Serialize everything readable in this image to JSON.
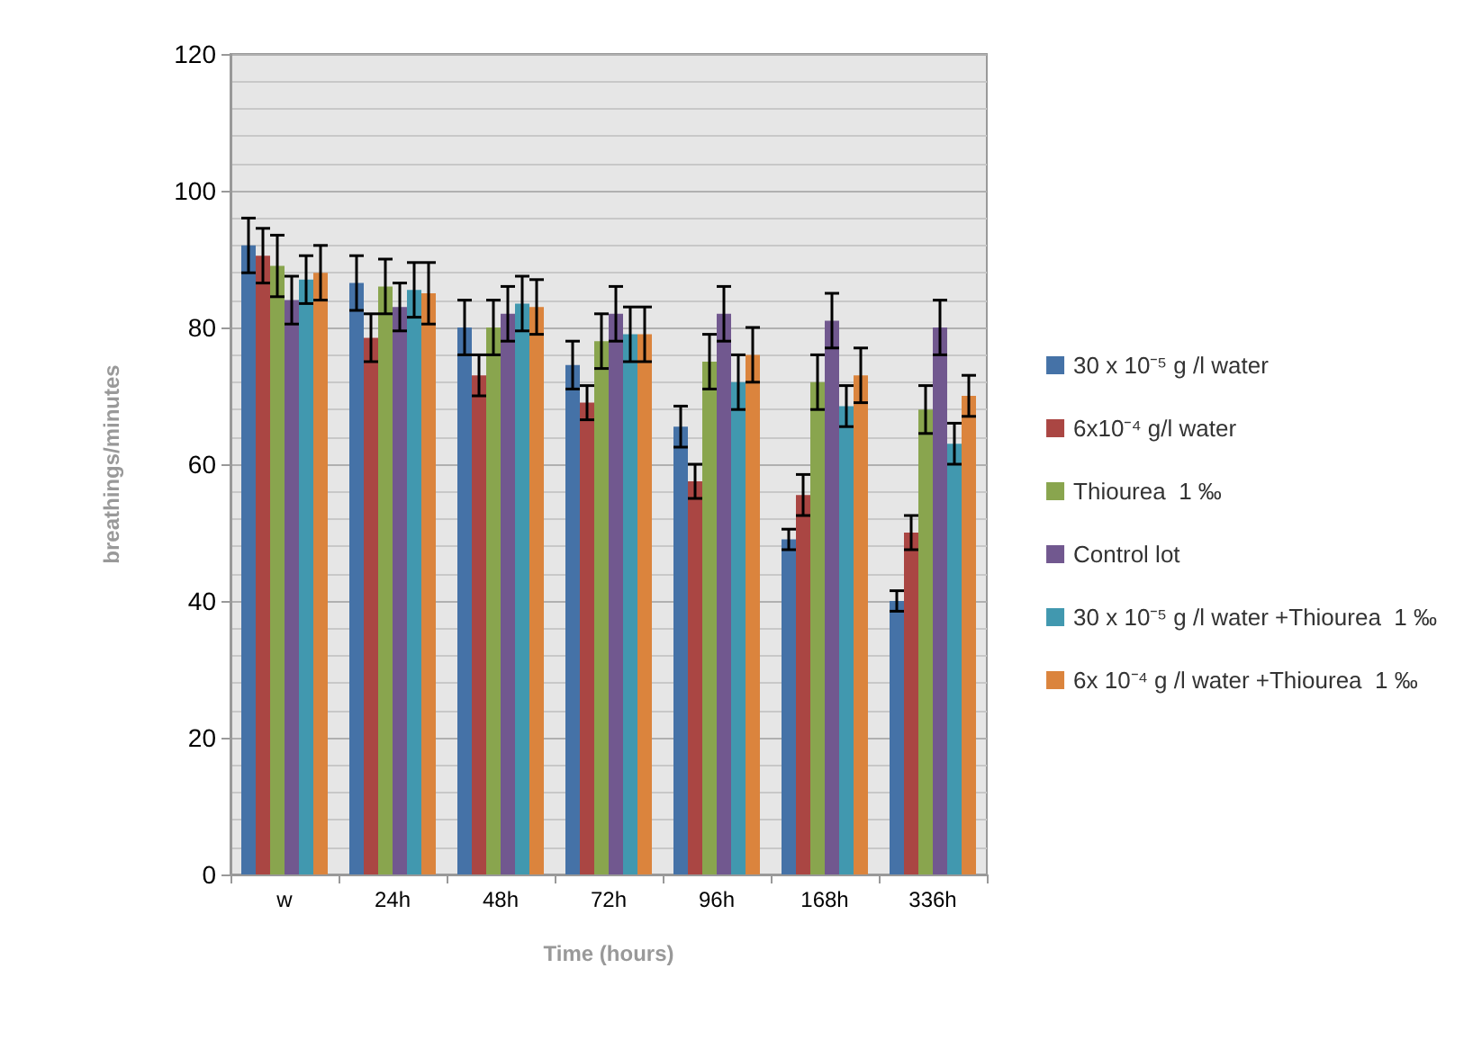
{
  "chart_data": {
    "type": "bar",
    "xlabel": "Time (hours)",
    "ylabel": "breathings/minutes",
    "categories": [
      "w",
      "24h",
      "48h",
      "72h",
      "96h",
      "168h",
      "336h"
    ],
    "series": [
      {
        "name": "30 x 10⁻⁵ g /l water",
        "color": "#4572a7",
        "values": [
          92,
          86.5,
          80,
          74.5,
          65.5,
          49,
          40
        ],
        "errors": [
          4,
          4,
          4,
          3.5,
          3,
          1.5,
          1.5
        ]
      },
      {
        "name": "6x10⁻⁴ g/l water",
        "color": "#aa4643",
        "values": [
          90.5,
          78.5,
          73,
          69,
          57.5,
          55.5,
          50
        ],
        "errors": [
          4,
          3.5,
          3,
          2.5,
          2.5,
          3,
          2.5
        ]
      },
      {
        "name": "Thiourea  1 ‰",
        "color": "#89a54e",
        "values": [
          89,
          86,
          80,
          78,
          75,
          72,
          68
        ],
        "errors": [
          4.5,
          4,
          4,
          4,
          4,
          4,
          3.5
        ]
      },
      {
        "name": "Control lot",
        "color": "#71588f",
        "values": [
          84,
          83,
          82,
          82,
          82,
          81,
          80
        ],
        "errors": [
          3.5,
          3.5,
          4,
          4,
          4,
          4,
          4
        ]
      },
      {
        "name": "30 x 10⁻⁵ g /l water +Thiourea  1 ‰",
        "color": "#4198af",
        "values": [
          87,
          85.5,
          83.5,
          79,
          72,
          68.5,
          63
        ],
        "errors": [
          3.5,
          4,
          4,
          4,
          4,
          3,
          3
        ]
      },
      {
        "name": "6x 10⁻⁴ g /l water +Thiourea  1 ‰",
        "color": "#db843d",
        "values": [
          88,
          85,
          83,
          79,
          76,
          73,
          70
        ],
        "errors": [
          4,
          4.5,
          4,
          4,
          4,
          4,
          3
        ]
      }
    ],
    "ylim": [
      0,
      120
    ],
    "yticks": [
      0,
      20,
      40,
      60,
      80,
      100,
      120
    ],
    "grid": "y",
    "legend": "right"
  }
}
